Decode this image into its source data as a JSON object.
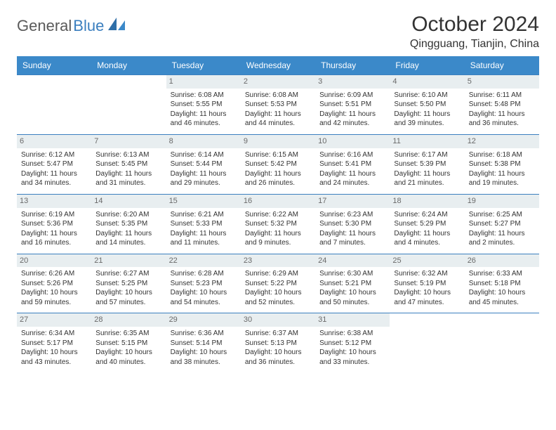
{
  "logo": {
    "part1": "General",
    "part2": "Blue"
  },
  "title": "October 2024",
  "location": "Qingguang, Tianjin, China",
  "colors": {
    "header_bg": "#3b89c9",
    "header_text": "#ffffff",
    "daynum_bg": "#e8eef0",
    "daynum_text": "#6a6a6a",
    "border": "#3b7fbf",
    "body_text": "#333333",
    "logo_gray": "#5a5a5a",
    "logo_blue": "#3b7fbf"
  },
  "weekdays": [
    "Sunday",
    "Monday",
    "Tuesday",
    "Wednesday",
    "Thursday",
    "Friday",
    "Saturday"
  ],
  "weeks": [
    [
      null,
      null,
      {
        "n": "1",
        "sr": "6:08 AM",
        "ss": "5:55 PM",
        "dl": "11 hours and 46 minutes."
      },
      {
        "n": "2",
        "sr": "6:08 AM",
        "ss": "5:53 PM",
        "dl": "11 hours and 44 minutes."
      },
      {
        "n": "3",
        "sr": "6:09 AM",
        "ss": "5:51 PM",
        "dl": "11 hours and 42 minutes."
      },
      {
        "n": "4",
        "sr": "6:10 AM",
        "ss": "5:50 PM",
        "dl": "11 hours and 39 minutes."
      },
      {
        "n": "5",
        "sr": "6:11 AM",
        "ss": "5:48 PM",
        "dl": "11 hours and 36 minutes."
      }
    ],
    [
      {
        "n": "6",
        "sr": "6:12 AM",
        "ss": "5:47 PM",
        "dl": "11 hours and 34 minutes."
      },
      {
        "n": "7",
        "sr": "6:13 AM",
        "ss": "5:45 PM",
        "dl": "11 hours and 31 minutes."
      },
      {
        "n": "8",
        "sr": "6:14 AM",
        "ss": "5:44 PM",
        "dl": "11 hours and 29 minutes."
      },
      {
        "n": "9",
        "sr": "6:15 AM",
        "ss": "5:42 PM",
        "dl": "11 hours and 26 minutes."
      },
      {
        "n": "10",
        "sr": "6:16 AM",
        "ss": "5:41 PM",
        "dl": "11 hours and 24 minutes."
      },
      {
        "n": "11",
        "sr": "6:17 AM",
        "ss": "5:39 PM",
        "dl": "11 hours and 21 minutes."
      },
      {
        "n": "12",
        "sr": "6:18 AM",
        "ss": "5:38 PM",
        "dl": "11 hours and 19 minutes."
      }
    ],
    [
      {
        "n": "13",
        "sr": "6:19 AM",
        "ss": "5:36 PM",
        "dl": "11 hours and 16 minutes."
      },
      {
        "n": "14",
        "sr": "6:20 AM",
        "ss": "5:35 PM",
        "dl": "11 hours and 14 minutes."
      },
      {
        "n": "15",
        "sr": "6:21 AM",
        "ss": "5:33 PM",
        "dl": "11 hours and 11 minutes."
      },
      {
        "n": "16",
        "sr": "6:22 AM",
        "ss": "5:32 PM",
        "dl": "11 hours and 9 minutes."
      },
      {
        "n": "17",
        "sr": "6:23 AM",
        "ss": "5:30 PM",
        "dl": "11 hours and 7 minutes."
      },
      {
        "n": "18",
        "sr": "6:24 AM",
        "ss": "5:29 PM",
        "dl": "11 hours and 4 minutes."
      },
      {
        "n": "19",
        "sr": "6:25 AM",
        "ss": "5:27 PM",
        "dl": "11 hours and 2 minutes."
      }
    ],
    [
      {
        "n": "20",
        "sr": "6:26 AM",
        "ss": "5:26 PM",
        "dl": "10 hours and 59 minutes."
      },
      {
        "n": "21",
        "sr": "6:27 AM",
        "ss": "5:25 PM",
        "dl": "10 hours and 57 minutes."
      },
      {
        "n": "22",
        "sr": "6:28 AM",
        "ss": "5:23 PM",
        "dl": "10 hours and 54 minutes."
      },
      {
        "n": "23",
        "sr": "6:29 AM",
        "ss": "5:22 PM",
        "dl": "10 hours and 52 minutes."
      },
      {
        "n": "24",
        "sr": "6:30 AM",
        "ss": "5:21 PM",
        "dl": "10 hours and 50 minutes."
      },
      {
        "n": "25",
        "sr": "6:32 AM",
        "ss": "5:19 PM",
        "dl": "10 hours and 47 minutes."
      },
      {
        "n": "26",
        "sr": "6:33 AM",
        "ss": "5:18 PM",
        "dl": "10 hours and 45 minutes."
      }
    ],
    [
      {
        "n": "27",
        "sr": "6:34 AM",
        "ss": "5:17 PM",
        "dl": "10 hours and 43 minutes."
      },
      {
        "n": "28",
        "sr": "6:35 AM",
        "ss": "5:15 PM",
        "dl": "10 hours and 40 minutes."
      },
      {
        "n": "29",
        "sr": "6:36 AM",
        "ss": "5:14 PM",
        "dl": "10 hours and 38 minutes."
      },
      {
        "n": "30",
        "sr": "6:37 AM",
        "ss": "5:13 PM",
        "dl": "10 hours and 36 minutes."
      },
      {
        "n": "31",
        "sr": "6:38 AM",
        "ss": "5:12 PM",
        "dl": "10 hours and 33 minutes."
      },
      null,
      null
    ]
  ],
  "labels": {
    "sunrise": "Sunrise: ",
    "sunset": "Sunset: ",
    "daylight": "Daylight: "
  }
}
